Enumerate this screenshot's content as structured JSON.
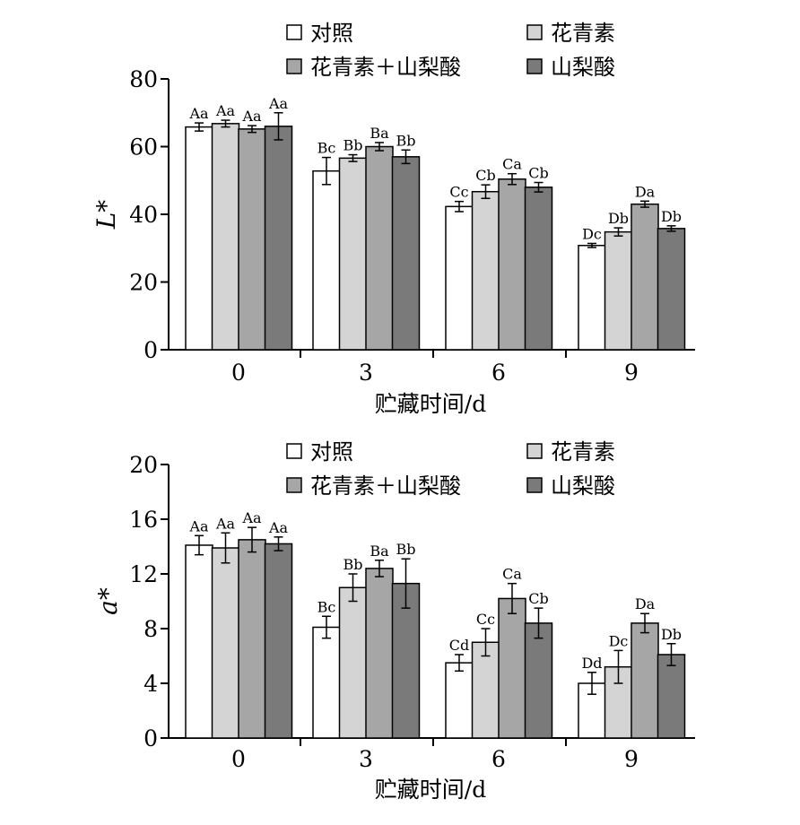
{
  "chart_data": [
    {
      "type": "bar",
      "categories": [
        "0",
        "3",
        "6",
        "9"
      ],
      "xlabel": "贮藏时间/d",
      "ylabel": "L*",
      "ylim": [
        0,
        80
      ],
      "yticks": [
        "0",
        "20",
        "40",
        "60",
        "80"
      ],
      "legend": {
        "placement": "top",
        "entries": [
          "对照",
          "花青素",
          "花青素＋山梨酸",
          "山梨酸"
        ]
      },
      "colors": [
        "#ffffff",
        "#d4d4d4",
        "#a6a6a6",
        "#7a7a7a"
      ],
      "series": [
        {
          "name": "对照",
          "values": [
            65.8,
            52.8,
            42.3,
            30.8
          ],
          "errors": [
            1.2,
            4.0,
            1.5,
            0.6
          ],
          "labels": [
            "Aa",
            "Bc",
            "Cc",
            "Dc"
          ]
        },
        {
          "name": "花青素",
          "values": [
            66.8,
            56.6,
            46.7,
            34.8
          ],
          "errors": [
            1.0,
            1.0,
            2.0,
            1.2
          ],
          "labels": [
            "Aa",
            "Bb",
            "Cb",
            "Db"
          ]
        },
        {
          "name": "花青素＋山梨酸",
          "values": [
            65.2,
            60.0,
            50.4,
            43.0
          ],
          "errors": [
            1.0,
            1.2,
            1.6,
            0.9
          ],
          "labels": [
            "Aa",
            "Ba",
            "Ca",
            "Da"
          ]
        },
        {
          "name": "山梨酸",
          "values": [
            66.0,
            57.0,
            48.0,
            35.8
          ],
          "errors": [
            4.0,
            2.0,
            1.4,
            0.8
          ],
          "labels": [
            "Aa",
            "Bb",
            "Cb",
            "Db"
          ]
        }
      ]
    },
    {
      "type": "bar",
      "categories": [
        "0",
        "3",
        "6",
        "9"
      ],
      "xlabel": "贮藏时间/d",
      "ylabel": "a*",
      "ylim": [
        0,
        20
      ],
      "yticks": [
        "0",
        "4",
        "8",
        "12",
        "16",
        "20"
      ],
      "legend": {
        "placement": "top",
        "entries": [
          "对照",
          "花青素",
          "花青素＋山梨酸",
          "山梨酸"
        ]
      },
      "colors": [
        "#ffffff",
        "#d4d4d4",
        "#a6a6a6",
        "#7a7a7a"
      ],
      "series": [
        {
          "name": "对照",
          "values": [
            14.1,
            8.1,
            5.5,
            4.0
          ],
          "errors": [
            0.7,
            0.8,
            0.6,
            0.8
          ],
          "labels": [
            "Aa",
            "Bc",
            "Cd",
            "Dd"
          ]
        },
        {
          "name": "花青素",
          "values": [
            13.9,
            11.0,
            7.0,
            5.2
          ],
          "errors": [
            1.1,
            1.0,
            1.0,
            1.2
          ],
          "labels": [
            "Aa",
            "Bb",
            "Cc",
            "Dc"
          ]
        },
        {
          "name": "花青素＋山梨酸",
          "values": [
            14.5,
            12.4,
            10.2,
            8.4
          ],
          "errors": [
            0.9,
            0.6,
            1.1,
            0.7
          ],
          "labels": [
            "Aa",
            "Ba",
            "Ca",
            "Da"
          ]
        },
        {
          "name": "山梨酸",
          "values": [
            14.2,
            11.3,
            8.4,
            6.1
          ],
          "errors": [
            0.5,
            1.8,
            1.1,
            0.8
          ],
          "labels": [
            "Aa",
            "Bb",
            "Cb",
            "Db"
          ]
        }
      ]
    }
  ]
}
